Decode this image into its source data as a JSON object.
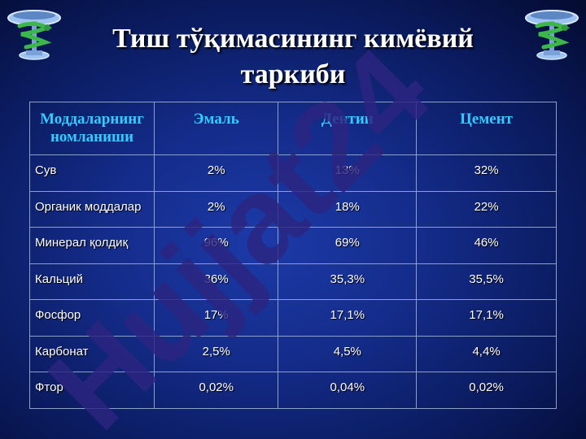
{
  "slide": {
    "title_line1": "Тиш тўқимасининг кимёвий",
    "title_line2": "таркиби"
  },
  "table": {
    "headers": [
      "Моддаларнинг номланиши",
      "Эмаль",
      "Дентин",
      "Цемент"
    ],
    "rows": [
      [
        "Сув",
        "2%",
        "13%",
        "32%"
      ],
      [
        "Органик моддалар",
        "2%",
        "18%",
        "22%"
      ],
      [
        "Минерал қолдиқ",
        "96%",
        "69%",
        "46%"
      ],
      [
        "Кальций",
        "36%",
        "35,3%",
        "35,5%"
      ],
      [
        "Фосфор",
        "17%",
        "17,1%",
        "17,1%"
      ],
      [
        "Карбонат",
        "2,5%",
        "4,5%",
        "4,4%"
      ],
      [
        "Фтор",
        "0,02%",
        "0,04%",
        "0,02%"
      ]
    ]
  },
  "watermark": {
    "text": "Hujjat24",
    "color": "#2c2580"
  },
  "emblem": {
    "icon": "medical-caduceus-bowl-icon",
    "colors": {
      "snake": "#3cb84a",
      "bowl": "#9ec3f0"
    }
  },
  "colors": {
    "header_text": "#33ccff",
    "cell_text": "#ffffff",
    "border": "#8fa0c8"
  }
}
